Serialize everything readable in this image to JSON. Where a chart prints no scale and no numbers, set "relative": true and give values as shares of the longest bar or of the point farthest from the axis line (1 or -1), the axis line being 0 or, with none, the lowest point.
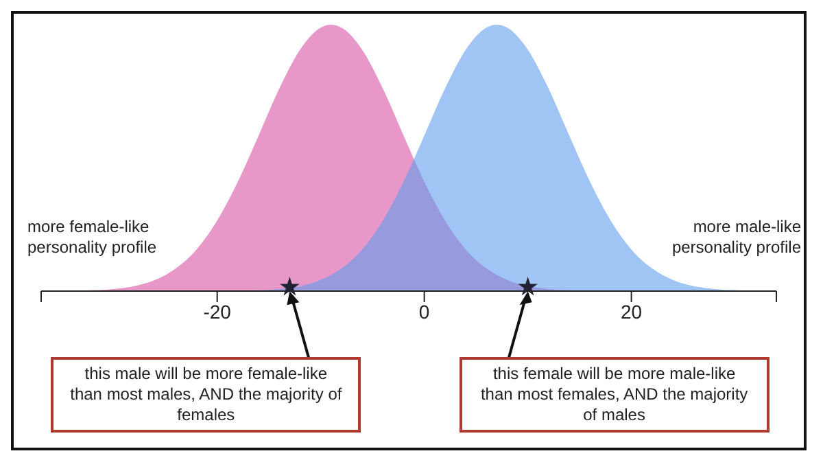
{
  "chart_data": {
    "type": "area",
    "relative": true,
    "xlim": [
      -37,
      34
    ],
    "xticks": [
      {
        "value": -37,
        "label": null
      },
      -20,
      0,
      20,
      {
        "value": 34,
        "label": null
      }
    ],
    "grid": false,
    "series": [
      {
        "color": "#e898c8",
        "x": [
          -36,
          -34,
          -32,
          -30,
          -28,
          -26,
          -24,
          -22,
          -20,
          -18,
          -16,
          -14,
          -12,
          -10,
          -9,
          -8,
          -6,
          -4,
          -2,
          0,
          2,
          4,
          6,
          8,
          10,
          12,
          14,
          16,
          18
        ],
        "values": [
          0,
          0.001,
          0.003,
          0.008,
          0.019,
          0.042,
          0.085,
          0.156,
          0.265,
          0.411,
          0.584,
          0.76,
          0.906,
          0.989,
          1,
          0.989,
          0.906,
          0.76,
          0.584,
          0.411,
          0.265,
          0.156,
          0.085,
          0.042,
          0.019,
          0.008,
          0.003,
          0.001,
          0
        ]
      },
      {
        "color": "#a0c4f4",
        "x": [
          -20,
          -18,
          -16,
          -14,
          -12,
          -10,
          -8,
          -6,
          -4,
          -2,
          0,
          2,
          4,
          6,
          7,
          8,
          10,
          12,
          14,
          16,
          18,
          20,
          22,
          24,
          26,
          28,
          30,
          32,
          34
        ],
        "values": [
          0,
          0.001,
          0.003,
          0.008,
          0.019,
          0.042,
          0.085,
          0.156,
          0.265,
          0.411,
          0.584,
          0.76,
          0.906,
          0.989,
          1,
          0.989,
          0.906,
          0.76,
          0.584,
          0.411,
          0.265,
          0.156,
          0.085,
          0.042,
          0.019,
          0.008,
          0.003,
          0.001,
          0
        ]
      },
      {
        "type": "scatter",
        "color": "#222233",
        "marker": "star",
        "x": [
          -13,
          10
        ],
        "values": [
          0.015,
          0.015
        ]
      }
    ],
    "annotations": [
      "more female-like personality profile",
      "more male-like personality profile",
      "this male will be more female-like than most males, AND the majority of females",
      "this female will be more male-like than most females, AND the majority of males"
    ]
  }
}
